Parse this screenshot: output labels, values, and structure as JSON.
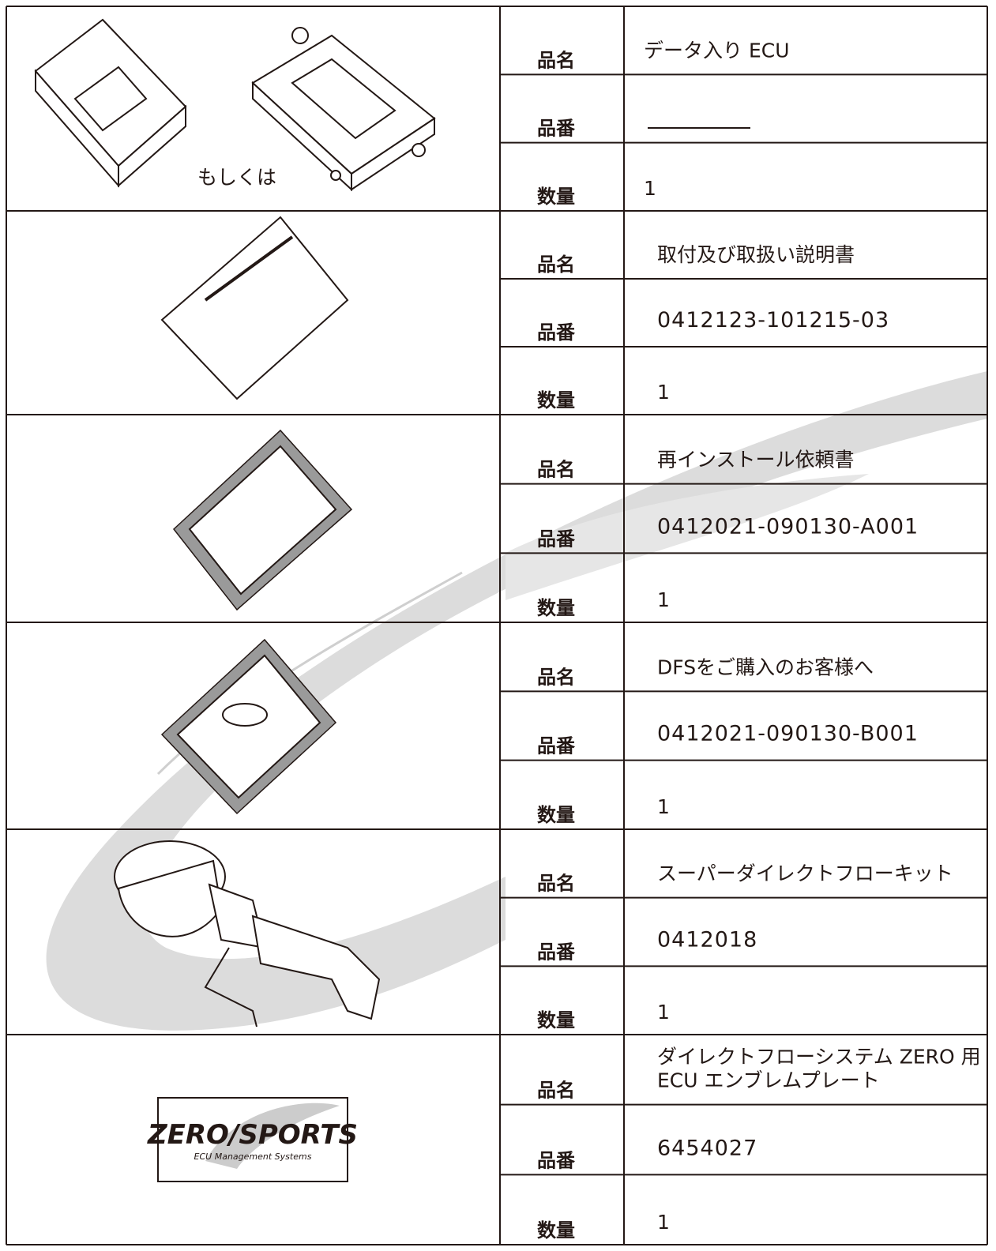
{
  "table": {
    "labels": {
      "name": "品名",
      "number": "品番",
      "quantity": "数量"
    },
    "items": [
      {
        "caption": "もしくは",
        "name": [
          "データ入り ECU"
        ],
        "quantity": "1"
      },
      {
        "name": [
          "取付及び取扱い説明書"
        ],
        "number": "0412123-101215-03",
        "quantity": "1"
      },
      {
        "name": [
          "再インストール依頼書"
        ],
        "number": "0412021-090130-A001",
        "quantity": "1"
      },
      {
        "name": [
          "DFSをご購入のお客様へ"
        ],
        "number": "0412021-090130-B001",
        "quantity": "1"
      },
      {
        "name": [
          "スーパーダイレクトフローキット"
        ],
        "number": "0412018",
        "quantity": "1"
      },
      {
        "logo": [
          "ZERO/SPORTS",
          "ECU Management Systems"
        ],
        "name": [
          "ダイレクトフローシステム ZERO 用",
          "ECU エンブレムプレート"
        ],
        "number": "6454027",
        "quantity": "1"
      }
    ]
  }
}
